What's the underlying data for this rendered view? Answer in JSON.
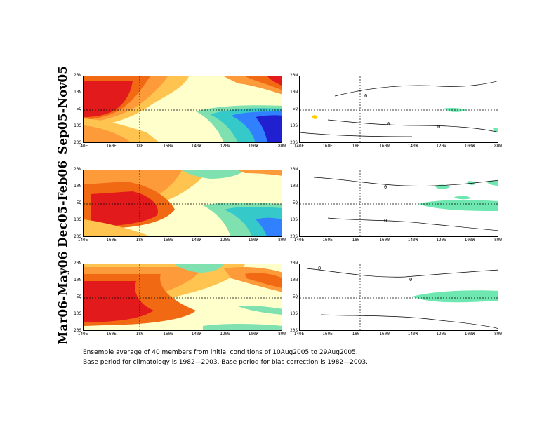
{
  "rows": [
    {
      "label": "Sep05-Nov05"
    },
    {
      "label": "Dec05-Feb06"
    },
    {
      "label": "Mar06-May06"
    }
  ],
  "lat_ticks": [
    "20N",
    "10N",
    "EQ",
    "10S",
    "20S"
  ],
  "lon_ticks": [
    "140E",
    "160E",
    "180",
    "160W",
    "140W",
    "120W",
    "100W",
    "80W"
  ],
  "contour_labels": [
    "0"
  ],
  "captions": [
    "Ensemble average of 40 members from initial conditions of 10Aug2005 to 29Aug2005.",
    "Base period for climatology is 1982—2003. Base period for bias correction is 1982—2003."
  ],
  "colors": {
    "deep_red": "#e31a1c",
    "orange_red": "#f16913",
    "orange": "#fd9a3a",
    "yellow_orange": "#fec44f",
    "light_yellow": "#ffeda0",
    "pale_yellow": "#ffffcc",
    "light_green": "#7fe0b0",
    "teal": "#35c9c9",
    "blue": "#3080ff",
    "deep_blue": "#2020d0",
    "significance_green": "#6ee8b0"
  }
}
